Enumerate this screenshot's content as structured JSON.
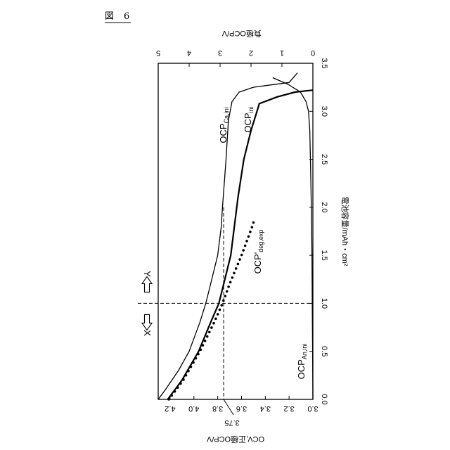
{
  "figure": {
    "label_kanji": "図",
    "label_number": "6"
  },
  "chart_data": {
    "type": "line",
    "orientation": "rotated-90-cw",
    "x_axis": {
      "label": "電池容量/mAh・cm²",
      "range": [
        0,
        3.5
      ],
      "ticks": [
        "0.0",
        "0.5",
        "1.0",
        "1.5",
        "2.0",
        "2.5",
        "3.0",
        "3.5"
      ]
    },
    "y_left_axis": {
      "label": "OCV,正極OCP/V",
      "range": [
        3.0,
        4.3
      ],
      "ticks": [
        "3.0",
        "3.2",
        "3.4",
        "3.6",
        "3.8",
        "4.0",
        "4.2"
      ]
    },
    "y_right_axis": {
      "label": "負極OCP/V",
      "range": [
        0,
        5
      ],
      "ticks": [
        "0",
        "1",
        "2",
        "3",
        "4",
        "5"
      ]
    },
    "annotations": {
      "ocv_marker": "3.75",
      "x_direction": "X",
      "y_direction": "Y",
      "vertical_line_x": 1.0,
      "horizontal_line_y": 3.75
    },
    "series": [
      {
        "name": "OCP_Ca,ini",
        "label_main": "OCP",
        "label_sub": "Ca,ini",
        "axis": "left",
        "style": "solid-thin",
        "x": [
          0.0,
          0.1,
          0.3,
          0.5,
          0.8,
          1.0,
          1.2,
          1.5,
          1.8,
          2.0,
          2.5,
          2.9,
          3.1,
          3.2,
          3.25,
          3.3,
          3.4
        ],
        "y": [
          4.3,
          4.24,
          4.13,
          4.04,
          3.95,
          3.9,
          3.86,
          3.8,
          3.77,
          3.76,
          3.73,
          3.71,
          3.68,
          3.62,
          3.5,
          3.2,
          3.13
        ]
      },
      {
        "name": "OCP_ini",
        "label_main": "OCP",
        "label_sub": "ini",
        "axis": "left",
        "style": "solid-thick",
        "x": [
          0.0,
          0.2,
          0.5,
          0.8,
          1.0,
          1.2,
          1.5,
          1.8,
          2.1,
          2.5,
          2.8,
          3.0,
          3.08,
          3.15,
          3.2,
          3.22
        ],
        "y": [
          4.22,
          4.1,
          3.96,
          3.86,
          3.79,
          3.75,
          3.69,
          3.66,
          3.63,
          3.58,
          3.52,
          3.47,
          3.45,
          3.3,
          3.15,
          3.0
        ]
      },
      {
        "name": "OCP'_deg,exp",
        "label_main": "OCP'",
        "label_sub": "deg,exp",
        "axis": "left",
        "style": "dotted",
        "x": [
          0.0,
          0.2,
          0.5,
          0.8,
          1.0,
          1.2,
          1.5,
          1.8,
          1.88
        ],
        "y": [
          4.21,
          4.09,
          3.95,
          3.83,
          3.76,
          3.7,
          3.6,
          3.51,
          3.49
        ]
      },
      {
        "name": "OCP_An,ini",
        "label_main": "OCP",
        "label_sub": "An,ini",
        "axis": "right",
        "style": "solid-thin",
        "x": [
          0.0,
          0.5,
          1.0,
          1.5,
          2.0,
          2.5,
          2.8,
          3.0,
          3.1,
          3.2,
          3.28,
          3.35
        ],
        "y": [
          0.0,
          0.01,
          0.02,
          0.03,
          0.05,
          0.08,
          0.1,
          0.14,
          0.22,
          0.4,
          0.8,
          1.3
        ]
      }
    ]
  }
}
